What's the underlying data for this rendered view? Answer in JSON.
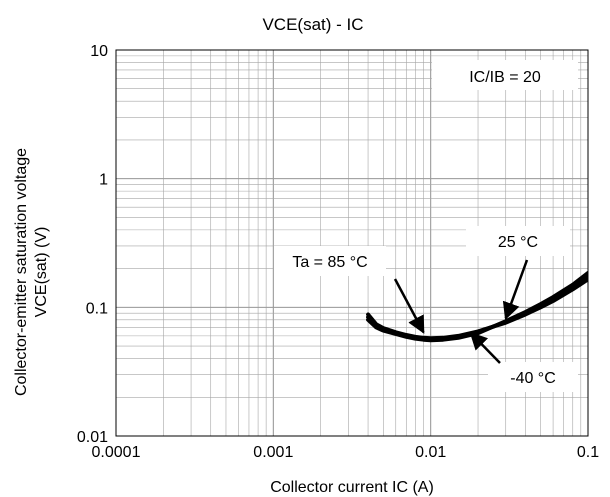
{
  "chart_data": {
    "type": "line",
    "title": "VCE(sat) - IC",
    "xlabel": "Collector current IC (A)",
    "ylabel_lines": [
      "Collector-emitter saturation voltage",
      "VCE(sat) (V)"
    ],
    "x_scale": "log",
    "y_scale": "log",
    "xlim": [
      0.0001,
      0.1
    ],
    "ylim": [
      0.01,
      10
    ],
    "x_ticks": [
      0.0001,
      0.001,
      0.01,
      0.1
    ],
    "x_tick_labels": [
      "0.0001",
      "0.001",
      "0.01",
      "0.1"
    ],
    "y_ticks": [
      0.01,
      0.1,
      1,
      10
    ],
    "y_tick_labels": [
      "0.01",
      "0.1",
      "1",
      "10"
    ],
    "grid": true,
    "condition_label": "IC/IB = 20",
    "series": [
      {
        "name": "Ta = 85 °C",
        "x": [
          0.004,
          0.0045,
          0.005,
          0.006,
          0.007,
          0.008,
          0.009,
          0.01,
          0.012,
          0.015,
          0.02,
          0.03,
          0.04,
          0.05,
          0.06,
          0.08,
          0.1
        ],
        "y": [
          0.088,
          0.074,
          0.069,
          0.064,
          0.061,
          0.059,
          0.058,
          0.0575,
          0.058,
          0.06,
          0.065,
          0.076,
          0.088,
          0.1,
          0.112,
          0.138,
          0.165
        ]
      },
      {
        "name": "25 °C",
        "x": [
          0.004,
          0.0045,
          0.005,
          0.006,
          0.007,
          0.008,
          0.009,
          0.01,
          0.012,
          0.015,
          0.02,
          0.03,
          0.04,
          0.05,
          0.06,
          0.08,
          0.1
        ],
        "y": [
          0.084,
          0.072,
          0.067,
          0.063,
          0.06,
          0.058,
          0.057,
          0.0565,
          0.057,
          0.059,
          0.064,
          0.077,
          0.09,
          0.103,
          0.116,
          0.144,
          0.175
        ]
      },
      {
        "name": "-40 °C",
        "x": [
          0.004,
          0.0045,
          0.005,
          0.006,
          0.007,
          0.008,
          0.009,
          0.01,
          0.012,
          0.015,
          0.02,
          0.03,
          0.04,
          0.05,
          0.06,
          0.08,
          0.1
        ],
        "y": [
          0.08,
          0.07,
          0.066,
          0.062,
          0.059,
          0.057,
          0.056,
          0.0555,
          0.056,
          0.058,
          0.063,
          0.078,
          0.092,
          0.106,
          0.12,
          0.15,
          0.185
        ]
      }
    ],
    "annotations": [
      {
        "text": "Ta = 85 °C",
        "series": "Ta = 85 °C",
        "arrow_to": [
          0.009,
          0.064
        ]
      },
      {
        "text": "25 °C",
        "series": "25 °C",
        "arrow_to": [
          0.03,
          0.082
        ]
      },
      {
        "text": "-40 °C",
        "series": "-40 °C",
        "arrow_to": [
          0.018,
          0.063
        ]
      }
    ],
    "colors": {
      "line": "#000000",
      "grid": "#a6a6a6",
      "frame": "#000000",
      "label_box": "#ffffff"
    }
  }
}
